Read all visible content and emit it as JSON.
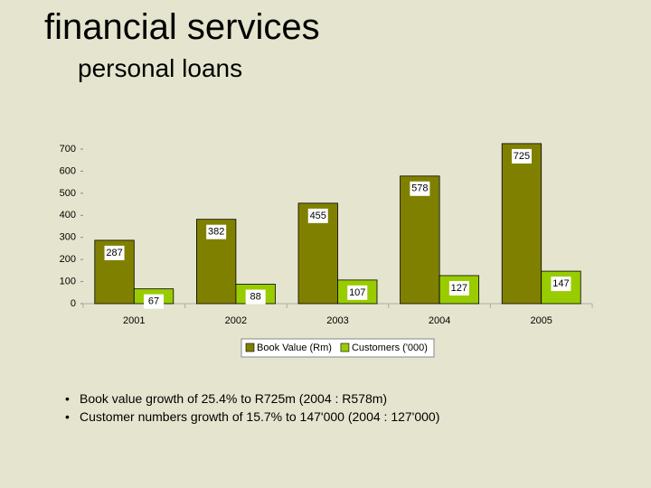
{
  "title": "financial services",
  "subtitle": "personal loans",
  "chart_data": {
    "type": "bar",
    "categories": [
      "2001",
      "2002",
      "2003",
      "2004",
      "2005"
    ],
    "series": [
      {
        "name": "Book Value (Rm)",
        "color": "#808000",
        "values": [
          287,
          382,
          455,
          578,
          725
        ]
      },
      {
        "name": "Customers ('000)",
        "color": "#99cc00",
        "values": [
          67,
          88,
          107,
          127,
          147
        ]
      }
    ],
    "ylim": [
      0,
      700
    ],
    "yticks": [
      0,
      100,
      200,
      300,
      400,
      500,
      600,
      700
    ]
  },
  "bullets": [
    "Book value growth of 25.4% to R725m (2004 : R578m)",
    "Customer numbers growth of 15.7% to 147'000 (2004 : 127'000)"
  ]
}
